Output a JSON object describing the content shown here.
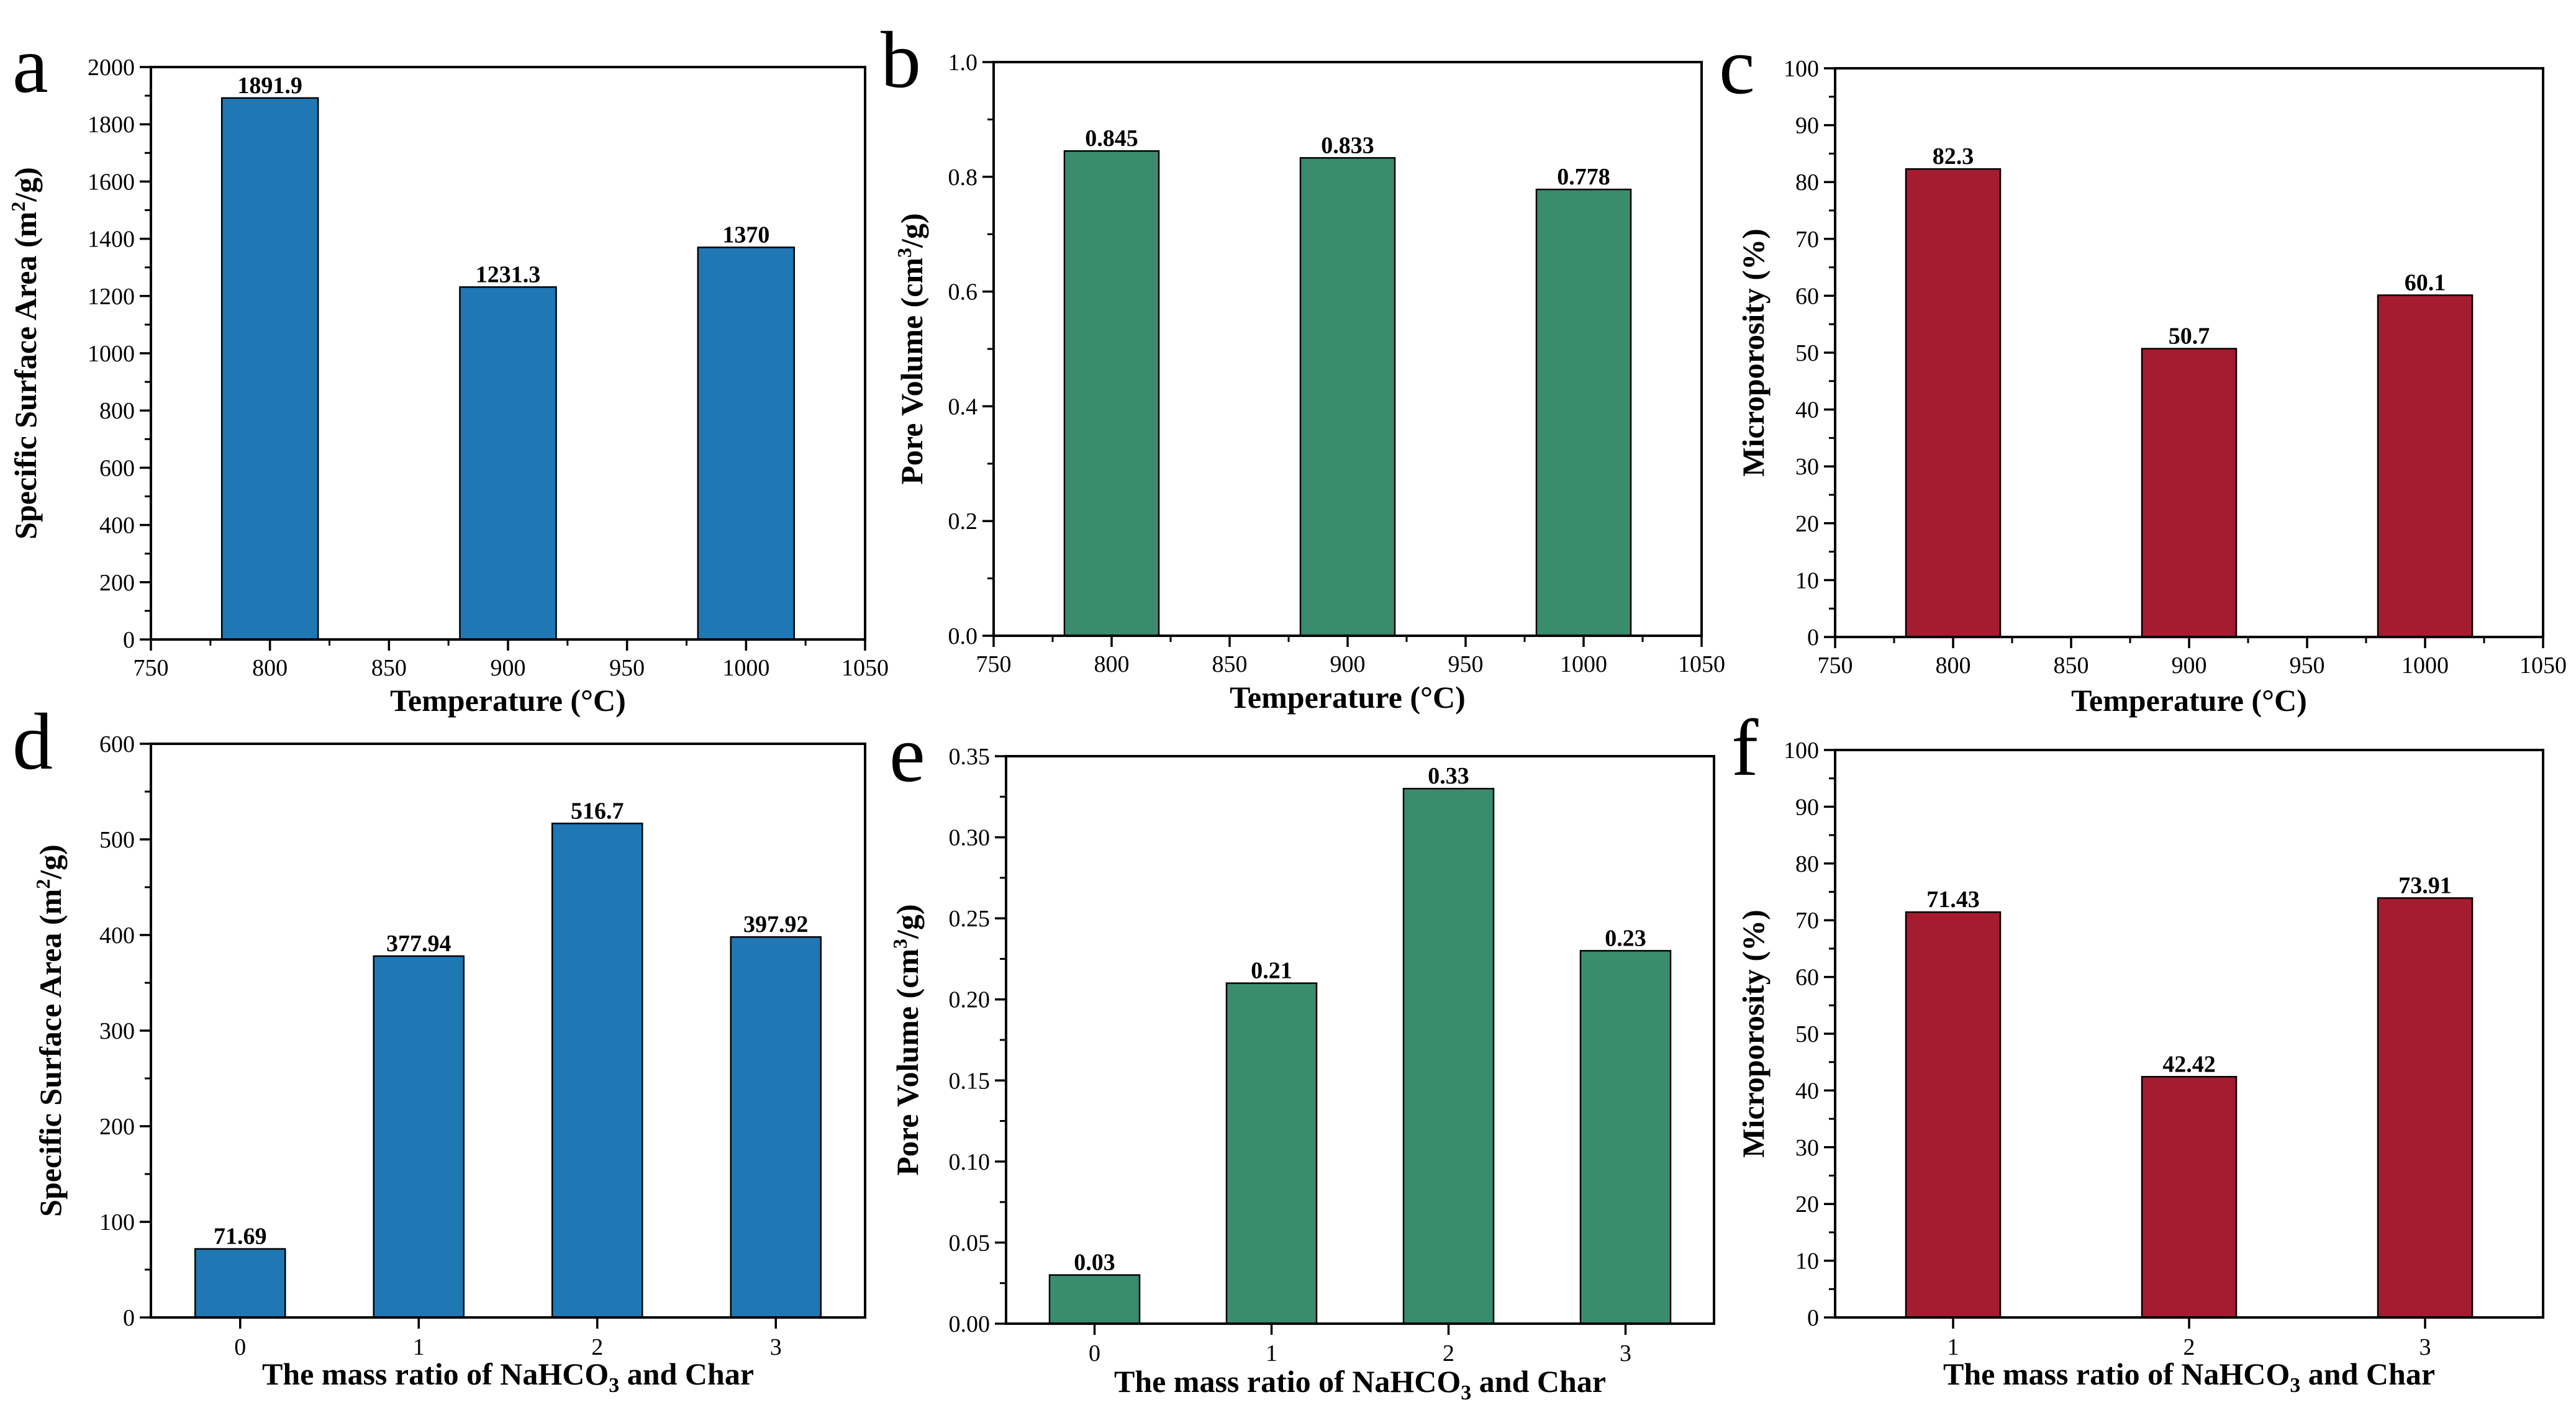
{
  "chart_data": [
    {
      "panel": "a",
      "type": "bar",
      "color": "#1f77b4",
      "xlabel": "Temperature (°C)",
      "ylabel_main": "Specific Surface Area (m",
      "ylabel_sup": "2",
      "ylabel_end": "/g)",
      "x": [
        800,
        900,
        1000
      ],
      "values": [
        1891.9,
        1231.3,
        1370
      ],
      "data_labels": [
        "1891.9",
        "1231.3",
        "1370"
      ],
      "xlim": [
        750,
        1050
      ],
      "ylim": [
        0,
        2000
      ],
      "xticks": [
        "750",
        "800",
        "850",
        "900",
        "950",
        "1000",
        "1050"
      ],
      "yticks": [
        "0",
        "200",
        "400",
        "600",
        "800",
        "1000",
        "1200",
        "1400",
        "1600",
        "1800",
        "2000"
      ]
    },
    {
      "panel": "b",
      "type": "bar",
      "color": "#3a8c6e",
      "xlabel": "Temperature (°C)",
      "ylabel_main": "Pore Volume (cm",
      "ylabel_sup": "3",
      "ylabel_end": "/g)",
      "x": [
        800,
        900,
        1000
      ],
      "values": [
        0.845,
        0.833,
        0.778
      ],
      "data_labels": [
        "0.845",
        "0.833",
        "0.778"
      ],
      "xlim": [
        750,
        1050
      ],
      "ylim": [
        0,
        1.0
      ],
      "xticks": [
        "750",
        "800",
        "850",
        "900",
        "950",
        "1000",
        "1050"
      ],
      "yticks": [
        "0.0",
        "0.2",
        "0.4",
        "0.6",
        "0.8",
        "1.0"
      ]
    },
    {
      "panel": "c",
      "type": "bar",
      "color": "#a51c30",
      "xlabel": "Temperature (°C)",
      "ylabel_main": "Microporosity (%)",
      "ylabel_sup": "",
      "ylabel_end": "",
      "x": [
        800,
        900,
        1000
      ],
      "values": [
        82.3,
        50.7,
        60.1
      ],
      "data_labels": [
        "82.3",
        "50.7",
        "60.1"
      ],
      "xlim": [
        750,
        1050
      ],
      "ylim": [
        0,
        100
      ],
      "xticks": [
        "750",
        "800",
        "850",
        "900",
        "950",
        "1000",
        "1050"
      ],
      "yticks": [
        "0",
        "10",
        "20",
        "30",
        "40",
        "50",
        "60",
        "70",
        "80",
        "90",
        "100"
      ]
    },
    {
      "panel": "d",
      "type": "bar",
      "color": "#1f77b4",
      "xlabel_main": "The mass ratio of NaHCO",
      "xlabel_sub": "3",
      "xlabel_end": " and Char",
      "ylabel_main": "Specific Surface Area (m",
      "ylabel_sup": "2",
      "ylabel_end": "/g)",
      "categories": [
        "0",
        "1",
        "2",
        "3"
      ],
      "values": [
        71.69,
        377.94,
        516.7,
        397.92
      ],
      "data_labels": [
        "71.69",
        "377.94",
        "516.7",
        "397.92"
      ],
      "ylim": [
        0,
        600
      ],
      "yticks": [
        "0",
        "100",
        "200",
        "300",
        "400",
        "500",
        "600"
      ]
    },
    {
      "panel": "e",
      "type": "bar",
      "color": "#3a8c6e",
      "xlabel_main": "The mass ratio of NaHCO",
      "xlabel_sub": "3",
      "xlabel_end": " and Char",
      "ylabel_main": "Pore Volume (cm",
      "ylabel_sup": "3",
      "ylabel_end": "/g)",
      "categories": [
        "0",
        "1",
        "2",
        "3"
      ],
      "values": [
        0.03,
        0.21,
        0.33,
        0.23
      ],
      "data_labels": [
        "0.03",
        "0.21",
        "0.33",
        "0.23"
      ],
      "ylim": [
        0,
        0.35
      ],
      "yticks": [
        "0.00",
        "0.05",
        "0.10",
        "0.15",
        "0.20",
        "0.25",
        "0.30",
        "0.35"
      ]
    },
    {
      "panel": "f",
      "type": "bar",
      "color": "#a51c30",
      "xlabel_main": "The mass ratio of NaHCO",
      "xlabel_sub": "3",
      "xlabel_end": " and Char",
      "ylabel_main": "Microporosity (%)",
      "ylabel_sup": "",
      "ylabel_end": "",
      "categories": [
        "1",
        "2",
        "3"
      ],
      "values": [
        71.43,
        42.42,
        73.91
      ],
      "data_labels": [
        "71.43",
        "42.42",
        "73.91"
      ],
      "ylim": [
        0,
        100
      ],
      "yticks": [
        "0",
        "10",
        "20",
        "30",
        "40",
        "50",
        "60",
        "70",
        "80",
        "90",
        "100"
      ]
    }
  ]
}
